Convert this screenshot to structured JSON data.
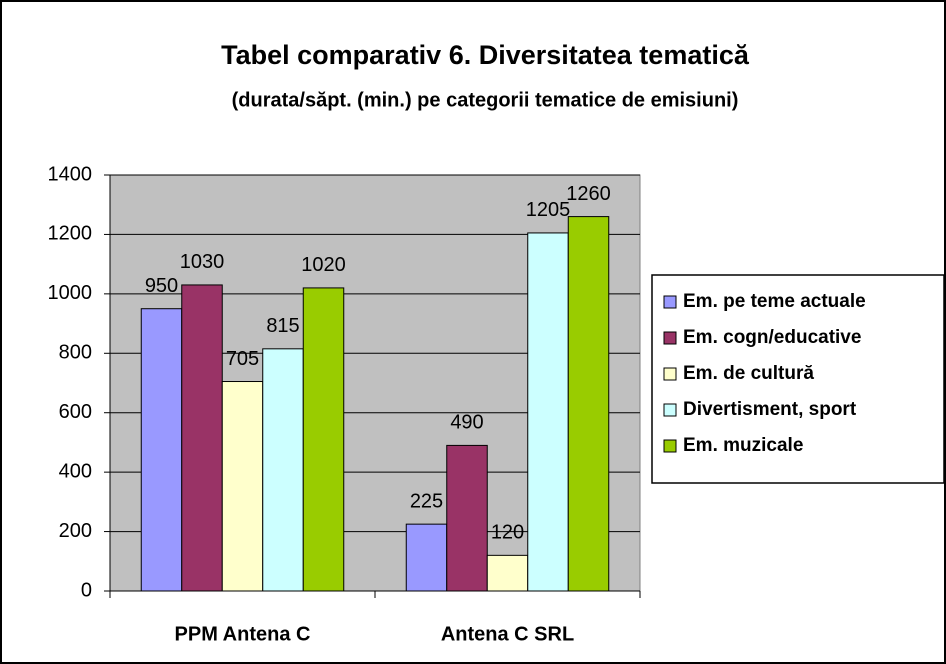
{
  "chart_data": {
    "type": "bar",
    "title": "Tabel comparativ 6. Diversitatea tematică",
    "subtitle": "(durata/săpt. (min.) pe categorii tematice de emisiuni)",
    "categories": [
      "PPM Antena C",
      "Antena C SRL"
    ],
    "series": [
      {
        "name": "Em. pe teme actuale",
        "color": "#9999ff",
        "values": [
          950,
          225
        ]
      },
      {
        "name": "Em. cogn/educative",
        "color": "#993366",
        "values": [
          1030,
          490
        ]
      },
      {
        "name": "Em. de cultură",
        "color": "#ffffcc",
        "values": [
          705,
          120
        ]
      },
      {
        "name": "Divertisment, sport",
        "color": "#ccffff",
        "values": [
          815,
          1205
        ]
      },
      {
        "name": "Em. muzicale",
        "color": "#99cc00",
        "values": [
          1020,
          1260
        ]
      }
    ],
    "ylim": [
      0,
      1400
    ],
    "yticks": [
      0,
      200,
      400,
      600,
      800,
      1000,
      1200,
      1400
    ],
    "grid": true,
    "legend": "right",
    "plot_background": "#c0c0c0"
  }
}
